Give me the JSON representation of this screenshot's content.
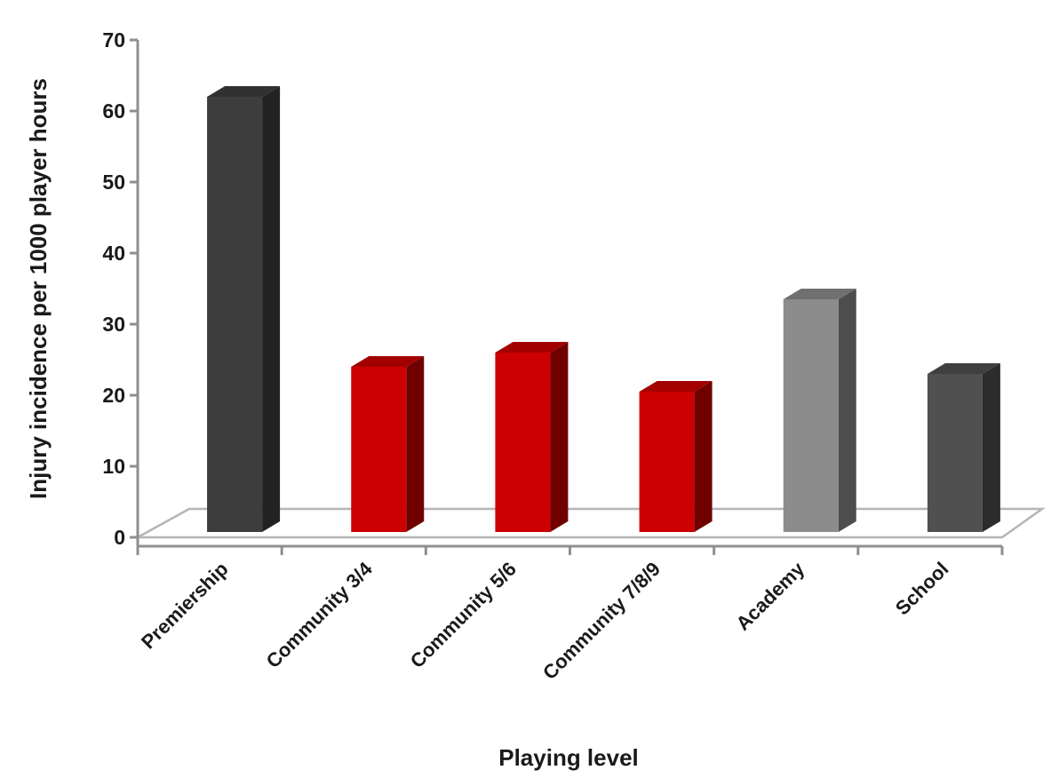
{
  "chart_data": {
    "type": "bar",
    "title": "",
    "xlabel": "Playing level",
    "ylabel": "Injury incidence per 1000 player hours",
    "ylim": [
      0,
      70
    ],
    "yticks": [
      0,
      10,
      20,
      30,
      40,
      50,
      60,
      70
    ],
    "categories": [
      "Premiership",
      "Community 3/4",
      "Community 5/6",
      "Community 7/8/9",
      "Academy",
      "School"
    ],
    "values": [
      62,
      24,
      26,
      20.5,
      33.5,
      23
    ],
    "colors": [
      "#3d3d3d",
      "#cc0000",
      "#cc0000",
      "#cc0000",
      "#8c8c8c",
      "#505050"
    ],
    "grid": false,
    "legend": "none"
  }
}
